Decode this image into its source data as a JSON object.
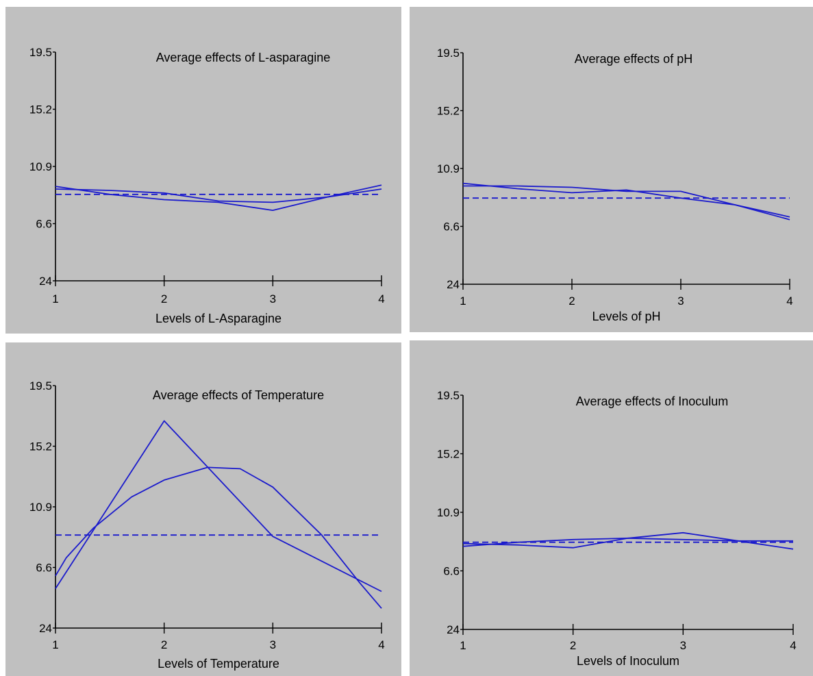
{
  "chart_data": [
    {
      "type": "line",
      "title": "Average effects of L-asparagine",
      "xlabel": "Levels of L-Asparagine",
      "ylabel": "",
      "x": [
        1,
        2,
        3,
        4
      ],
      "xtick_labels": [
        "1",
        "2",
        "3",
        "4"
      ],
      "ytick_labels": [
        "24",
        "6.6",
        "10.9",
        "15.2",
        "19.5"
      ],
      "ylim": [
        2.3,
        19.5
      ],
      "series": [
        {
          "style": "solid",
          "x": [
            1,
            1.5,
            2,
            2.5,
            3,
            3.5,
            4
          ],
          "values": [
            9.4,
            8.8,
            8.4,
            8.2,
            7.6,
            8.6,
            9.5
          ]
        },
        {
          "style": "solid",
          "x": [
            1,
            1.5,
            2,
            2.5,
            3,
            3.5,
            4
          ],
          "values": [
            9.2,
            9.1,
            8.9,
            8.3,
            8.2,
            8.6,
            9.2
          ]
        },
        {
          "style": "dashed",
          "x": [
            1,
            4
          ],
          "values": [
            8.8,
            8.8
          ]
        }
      ],
      "color": "#1a1acc"
    },
    {
      "type": "line",
      "title": "Average effects of pH",
      "xlabel": "Levels of pH",
      "ylabel": "",
      "x": [
        1,
        2,
        3,
        4
      ],
      "xtick_labels": [
        "1",
        "2",
        "3",
        "4"
      ],
      "ytick_labels": [
        "24",
        "6.6",
        "10.9",
        "15.2",
        "19.5"
      ],
      "ylim": [
        2.3,
        19.5
      ],
      "series": [
        {
          "style": "solid",
          "x": [
            1,
            1.5,
            2,
            2.5,
            3,
            3.5,
            4
          ],
          "values": [
            9.8,
            9.4,
            9.1,
            9.3,
            8.7,
            8.2,
            7.3
          ]
        },
        {
          "style": "solid",
          "x": [
            1,
            1.5,
            2,
            2.5,
            3,
            3.5,
            4
          ],
          "values": [
            9.6,
            9.6,
            9.5,
            9.2,
            9.2,
            8.2,
            7.1
          ]
        },
        {
          "style": "dashed",
          "x": [
            1,
            4
          ],
          "values": [
            8.7,
            8.7
          ]
        }
      ],
      "color": "#1a1acc"
    },
    {
      "type": "line",
      "title": "Average effects of Temperature",
      "xlabel": "Levels of Temperature",
      "ylabel": "",
      "x": [
        1,
        2,
        3,
        4
      ],
      "xtick_labels": [
        "1",
        "2",
        "3",
        "4"
      ],
      "ytick_labels": [
        "24",
        "6.6",
        "10.9",
        "15.2",
        "19.5"
      ],
      "ylim": [
        2.3,
        19.5
      ],
      "series": [
        {
          "style": "solid",
          "x": [
            1,
            2,
            3,
            4
          ],
          "values": [
            5.1,
            17.0,
            8.8,
            4.9
          ]
        },
        {
          "style": "solid",
          "x": [
            1,
            1.1,
            1.35,
            1.7,
            2.0,
            2.4,
            2.7,
            3.0,
            3.45,
            3.8,
            4.0
          ],
          "values": [
            6.0,
            7.3,
            9.4,
            11.6,
            12.8,
            13.7,
            13.6,
            12.3,
            8.9,
            5.5,
            3.7
          ]
        },
        {
          "style": "dashed",
          "x": [
            1,
            4
          ],
          "values": [
            8.9,
            8.9
          ]
        }
      ],
      "color": "#1a1acc"
    },
    {
      "type": "line",
      "title": "Average effects of Inoculum",
      "xlabel": "Levels of Inoculum",
      "ylabel": "",
      "x": [
        1,
        2,
        3,
        4
      ],
      "xtick_labels": [
        "1",
        "2",
        "3",
        "4"
      ],
      "ytick_labels": [
        "24",
        "6.6",
        "10.9",
        "15.2",
        "19.5"
      ],
      "ylim": [
        2.3,
        19.5
      ],
      "series": [
        {
          "style": "solid",
          "x": [
            1,
            1.5,
            2,
            2.5,
            3,
            3.5,
            4
          ],
          "values": [
            8.4,
            8.7,
            8.9,
            9.0,
            8.9,
            8.8,
            8.8
          ]
        },
        {
          "style": "solid",
          "x": [
            1,
            1.5,
            2,
            2.5,
            3,
            3.5,
            4
          ],
          "values": [
            8.6,
            8.5,
            8.3,
            9.0,
            9.4,
            8.8,
            8.2
          ]
        },
        {
          "style": "dashed",
          "x": [
            1,
            4
          ],
          "values": [
            8.7,
            8.7
          ]
        }
      ],
      "color": "#1a1acc"
    }
  ]
}
